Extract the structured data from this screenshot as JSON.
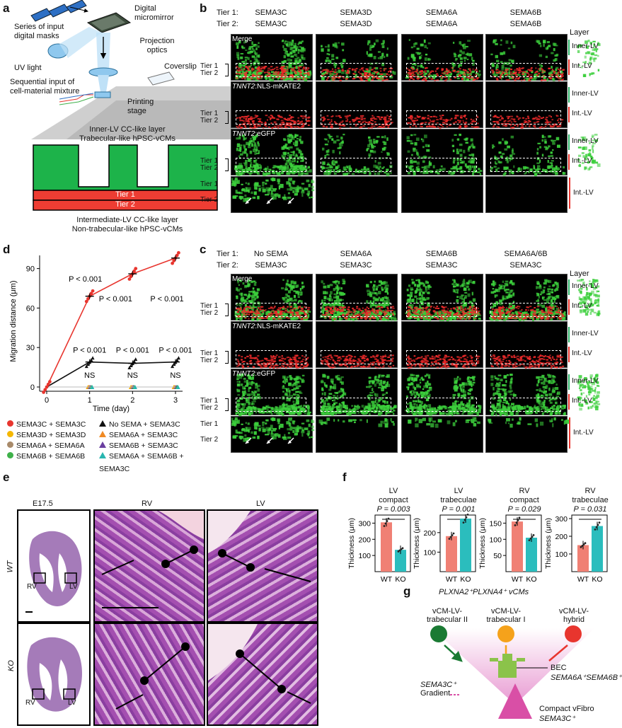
{
  "panel_labels": {
    "a": "a",
    "b": "b",
    "c": "c",
    "d": "d",
    "e": "e",
    "f": "f",
    "g": "g"
  },
  "a": {
    "series_masks": "Series of input digital masks",
    "dmd": "Digital micromirror",
    "projection": "Projection optics",
    "uv": "UV light",
    "coverslip": "Coverslip",
    "sequential": "Sequential input of cell-material mixture",
    "stage": "Printing stage",
    "inner_title1": "Inner-LV CC-like layer",
    "inner_title2": "Trabecular-like hPSC-vCMs",
    "tier1": "Tier 1",
    "tier2": "Tier 2",
    "inter_title1": "Intermediate-LV CC-like layer",
    "inter_title2": "Non-trabecular-like hPSC-vCMs"
  },
  "b": {
    "tier1_label": "Tier 1:",
    "tier2_label": "Tier 2:",
    "columns": [
      {
        "t1": "SEMA3C",
        "t2": "SEMA3C"
      },
      {
        "t1": "SEMA3D",
        "t2": "SEMA3D"
      },
      {
        "t1": "SEMA6A",
        "t2": "SEMA6A"
      },
      {
        "t1": "SEMA6B",
        "t2": "SEMA6B"
      }
    ],
    "layer": "Layer",
    "row_titles": [
      "Merge",
      "NLS-mKATE2",
      "eGFP"
    ],
    "gene": "TNNT2",
    "inner_lv": "Inner-LV",
    "int_lv": "Int.-LV",
    "tier1": "Tier 1",
    "tier2": "Tier 2"
  },
  "c": {
    "tier1_label": "Tier 1:",
    "tier2_label": "Tier 2:",
    "columns": [
      {
        "t1": "No SEMA",
        "t2": "SEMA3C"
      },
      {
        "t1": "SEMA6A",
        "t2": "SEMA3C"
      },
      {
        "t1": "SEMA6B",
        "t2": "SEMA3C"
      },
      {
        "t1": "SEMA6A/6B",
        "t2": "SEMA3C"
      }
    ],
    "layer": "Layer",
    "row_titles": [
      "Merge",
      "NLS-mKATE2",
      "eGFP"
    ],
    "gene": "TNNT2",
    "inner_lv": "Inner-LV",
    "int_lv": "Int.-LV",
    "tier1": "Tier 1",
    "tier2": "Tier 2"
  },
  "chart_data": [
    {
      "type": "line",
      "panel": "d",
      "ylabel": "Migration distance (μm)",
      "xlabel": "Time (day)",
      "x": [
        0,
        1,
        2,
        3
      ],
      "xticks": [
        "0",
        "1",
        "2",
        "3"
      ],
      "ylim": [
        0,
        100
      ],
      "yticks": [
        "0",
        "30",
        "60",
        "90"
      ],
      "series": [
        {
          "name": "SEMA3C + SEMA3C",
          "color": "#e8352e",
          "values": [
            0,
            69,
            86,
            98
          ]
        },
        {
          "name": "No SEMA + SEMA3C",
          "color": "#111111",
          "values": [
            0,
            19,
            18,
            19
          ]
        },
        {
          "name": "SEMA3D + SEMA3D",
          "color": "#f5b700",
          "values": [
            0,
            0,
            0,
            0
          ]
        },
        {
          "name": "SEMA6A + SEMA3C",
          "color": "#f08a24",
          "values": [
            0,
            0,
            0,
            0
          ]
        },
        {
          "name": "SEMA6A + SEMA6A",
          "color": "#a88a6a",
          "values": [
            0,
            0,
            0,
            0
          ]
        },
        {
          "name": "SEMA6B + SEMA3C",
          "color": "#6a3fa0",
          "values": [
            0,
            0,
            0,
            0
          ]
        },
        {
          "name": "SEMA6B + SEMA6B",
          "color": "#3fb14a",
          "values": [
            0,
            0,
            0,
            0
          ]
        },
        {
          "name": "SEMA6A + SEMA6B + SEMA3C",
          "color": "#29b6b0",
          "values": [
            0,
            0,
            0,
            0
          ]
        }
      ],
      "annotations": {
        "red_p": [
          "P < 0.001",
          "P < 0.001",
          "P < 0.001"
        ],
        "black_p": [
          "P < 0.001",
          "P < 0.001",
          "P < 0.001"
        ],
        "ns": [
          "NS",
          "NS",
          "NS"
        ]
      }
    },
    {
      "type": "bar",
      "panel": "f",
      "title1": "LV",
      "title2": "compact",
      "p": "P = 0.003",
      "ylabel": "Thickness (μm)",
      "categories": [
        "WT",
        "KO"
      ],
      "values": [
        305,
        135
      ],
      "ylim": [
        0,
        350
      ],
      "yticks": [
        "100",
        "200",
        "300"
      ],
      "colors": [
        "#f08074",
        "#2bbdbd"
      ]
    },
    {
      "type": "bar",
      "panel": "f",
      "title1": "LV",
      "title2": "trabeculae",
      "p": "P = 0.001",
      "ylabel": "Thickness (μm)",
      "categories": [
        "WT",
        "KO"
      ],
      "values": [
        182,
        272
      ],
      "ylim": [
        0,
        290
      ],
      "yticks": [
        "100",
        "200"
      ],
      "colors": [
        "#f08074",
        "#2bbdbd"
      ]
    },
    {
      "type": "bar",
      "panel": "f",
      "title1": "RV",
      "title2": "compact",
      "p": "P = 0.029",
      "ylabel": "Thickness (μm)",
      "categories": [
        "WT",
        "KO"
      ],
      "values": [
        155,
        105
      ],
      "ylim": [
        0,
        175
      ],
      "yticks": [
        "50",
        "100",
        "150"
      ],
      "colors": [
        "#f08074",
        "#2bbdbd"
      ]
    },
    {
      "type": "bar",
      "panel": "f",
      "title1": "RV",
      "title2": "trabeculae",
      "p": "P = 0.031",
      "ylabel": "Thickness (μm)",
      "categories": [
        "WT",
        "KO"
      ],
      "values": [
        150,
        258
      ],
      "ylim": [
        0,
        320
      ],
      "yticks": [
        "100",
        "200",
        "300"
      ],
      "colors": [
        "#f08074",
        "#2bbdbd"
      ]
    }
  ],
  "e": {
    "e175": "E17.5",
    "rv": "RV",
    "lv": "LV",
    "wt": "WT",
    "ko": "KO"
  },
  "g": {
    "title": "PLXNA2⁺PLXNA4⁺ vCMs",
    "c1": "vCM-LV-\ntrabecular II",
    "c2": "vCM-LV-\ntrabecular I",
    "c3": "vCM-LV-\nhybrid",
    "bec": "BEC",
    "bec2": "SEMA6A⁺SEMA6B⁺",
    "gradient1": "SEMA3C⁺",
    "gradient2": "Gradient",
    "vfibro": "Compact vFibro",
    "vfibro2": "SEMA3C⁺"
  }
}
